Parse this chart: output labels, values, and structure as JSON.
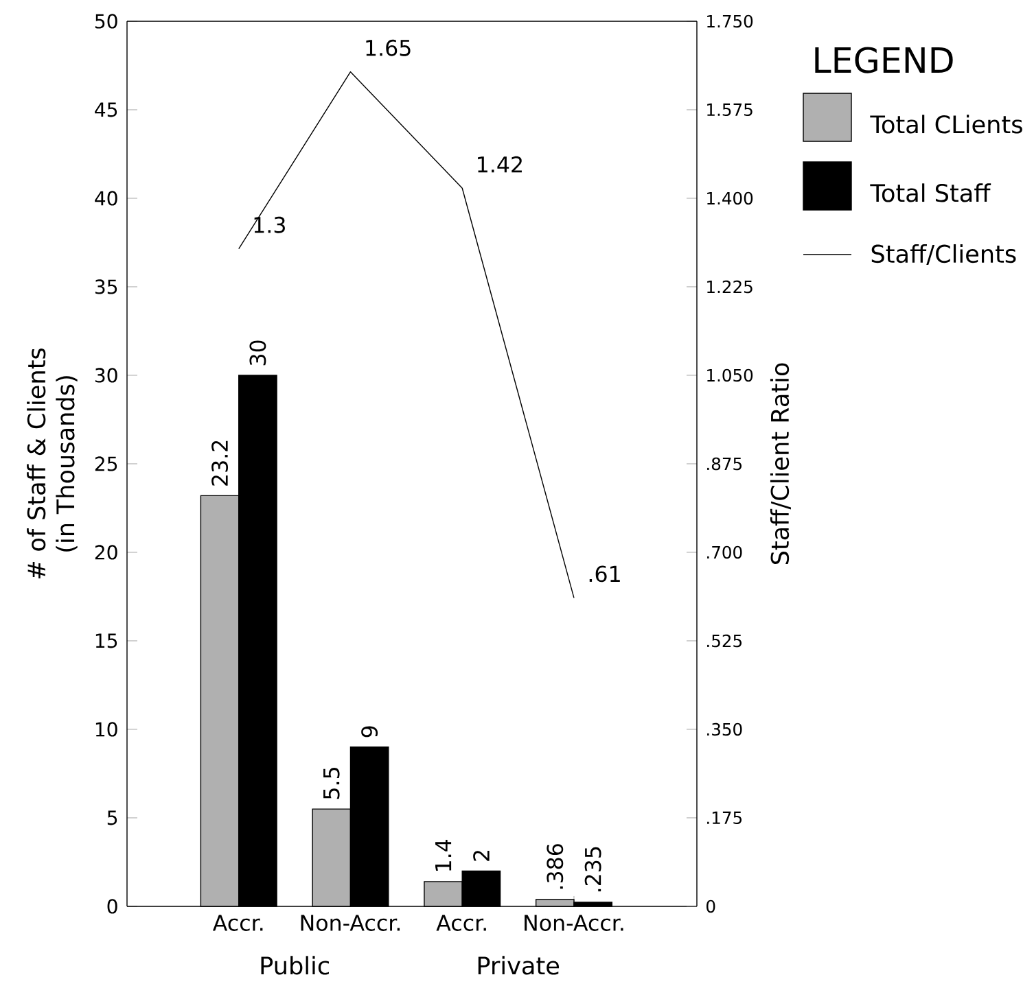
{
  "chart_data": {
    "type": "bar",
    "categories": [
      "Accr.",
      "Non-Accr.",
      "Accr.",
      "Non-Accr."
    ],
    "series": [
      {
        "name": "Total CLients",
        "color": "#b0b0b0",
        "values": [
          23.2,
          5.5,
          1.4,
          0.386
        ],
        "value_labels": [
          "23.2",
          "5.5",
          "1.4",
          ".386"
        ]
      },
      {
        "name": "Total Staff",
        "color": "#000000",
        "values": [
          30,
          9,
          2,
          0.235
        ],
        "value_labels": [
          "30",
          "9",
          "2",
          ".235"
        ]
      },
      {
        "name": "Staff/Clients",
        "type": "line",
        "axis": "y2",
        "color": "#000000",
        "values": [
          1.3,
          1.65,
          1.42,
          0.61
        ],
        "value_labels": [
          "1.3",
          "1.65",
          "1.42",
          ".61"
        ]
      }
    ],
    "ylabel": "# of Staff & Clients (in Thousands)",
    "y2label": "Staff/Client Ratio",
    "legend_title": "LEGEND",
    "legend": "right",
    "annotations": [
      "Public",
      "Private"
    ],
    "ylim": [
      0,
      50
    ],
    "yticks": [
      0,
      5,
      10,
      15,
      20,
      25,
      30,
      35,
      40,
      45,
      50
    ],
    "y2lim": [
      0,
      1.75
    ],
    "y2ticks": [
      0,
      {
        "value": 0.175,
        "label": ".175"
      },
      {
        "value": 0.35,
        "label": ".350"
      },
      {
        "value": 0.525,
        "label": ".525"
      },
      {
        "value": 0.7,
        "label": ".700"
      },
      {
        "value": 0.875,
        "label": ".875"
      },
      {
        "value": 1.05,
        "label": "1.050"
      },
      {
        "value": 1.225,
        "label": "1.225"
      },
      {
        "value": 1.4,
        "label": "1.400"
      },
      {
        "value": 1.575,
        "label": "1.575"
      },
      {
        "value": 1.75,
        "label": "1.750"
      }
    ]
  }
}
